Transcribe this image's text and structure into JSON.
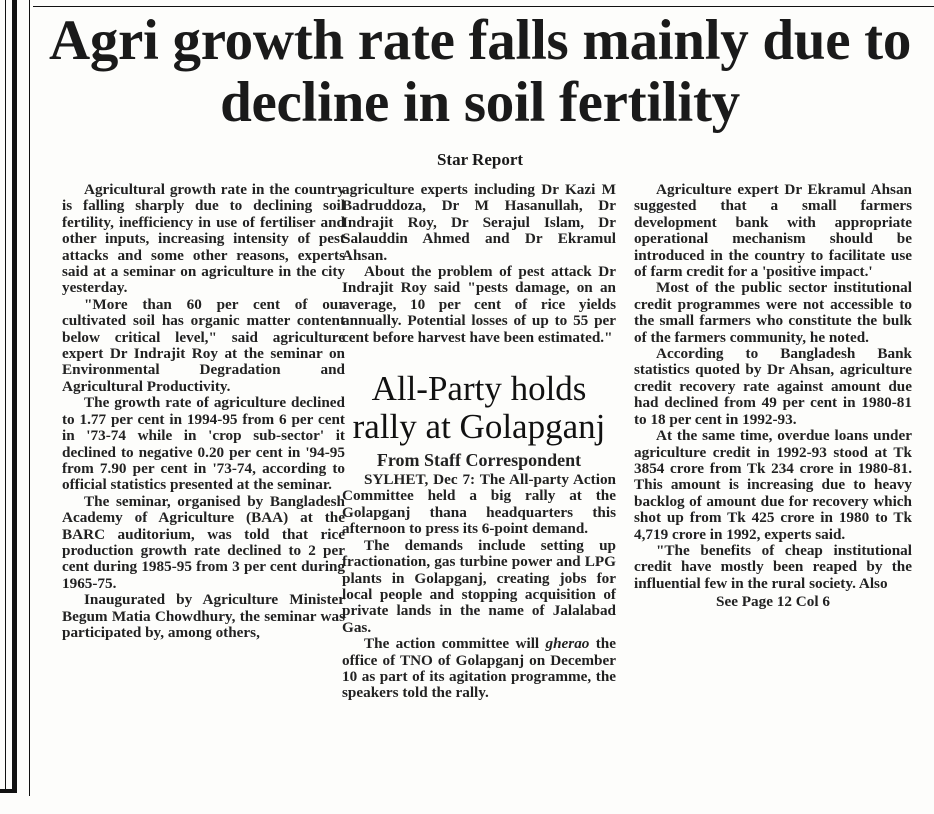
{
  "main_story": {
    "headline": "Agri growth rate falls mainly due to decline in soil fertility",
    "byline": "Star Report",
    "column1": [
      "Agricultural growth rate in the country is falling sharply due to declining soil fertility, inefficiency in use of fertiliser and other inputs, increasing intensity of pest attacks and some other reasons, experts said at a seminar on agriculture in the city yesterday.",
      "\"More than 60 per cent of our cultivated soil has organic matter content below critical level,\" said agriculture expert Dr Indrajit Roy at the seminar on Environmental Degradation and Agricultural Productivity.",
      "The growth rate of agriculture declined to 1.77 per cent in 1994-95 from 6 per cent in '73-74 while in 'crop sub-sector' it declined to negative 0.20 per cent in '94-95 from 7.90 per cent in '73-74, according to official statistics presented at the seminar.",
      "The seminar, organised by Bangladesh Academy of Agriculture (BAA) at the BARC auditorium, was told that rice production growth rate declined to 2 per cent during 1985-95 from 3 per cent during 1965-75.",
      "Inaugurated by Agriculture Minister Begum Matia Chowdhury, the seminar was participated by, among others,"
    ],
    "column2": [
      "agriculture experts including Dr Kazi M Badruddoza, Dr M Hasanullah, Dr Indrajit Roy, Dr Serajul Islam, Dr Salauddin Ahmed and Dr Ekramul Ahsan.",
      "About the problem of pest attack Dr Indrajit Roy said \"pests damage, on an average, 10 per cent of rice yields annually. Potential losses of up to 55 per cent before harvest have been estimated.\""
    ],
    "column3": [
      "Agriculture expert Dr Ekramul Ahsan suggested that a small farmers development bank with appropriate operational mechanism should be introduced in the country to facilitate use of farm credit for a 'positive impact.'",
      "Most of the public sector institutional credit programmes were not accessible to the small farmers who constitute the bulk of the farmers community, he noted.",
      "According to Bangladesh Bank statistics quoted by Dr Ahsan, agriculture credit recovery rate against amount due had declined from 49 per cent in 1980-81 to 18 per cent in 1992-93.",
      "At the same time, overdue loans under agriculture credit in 1992-93 stood at Tk 3854 crore from Tk 234 crore in 1980-81. This amount is increasing due to heavy backlog of amount due for recovery which shot up from Tk 425 crore in 1980 to Tk 4,719 crore in 1992, experts said.",
      "\"The benefits of cheap institutional credit have mostly been reaped by the influential few in the rural society. Also"
    ],
    "jump": "See Page 12 Col 6"
  },
  "second_story": {
    "headline": "All-Party holds rally at Golapganj",
    "byline": "From Staff Correspondent",
    "paragraphs": [
      "SYLHET, Dec 7: The All-party Action Committee held a big rally at the Golapganj thana headquarters this afternoon to press its 6-point demand.",
      "The demands include setting up fractionation, gas turbine power and LPG plants in Golapganj, creating jobs for local people and stopping acquisition of private lands in the name of Jalalabad Gas."
    ],
    "last_paragraph_italic": "gherao",
    "last_paragraph_before": "The action committee will ",
    "last_paragraph_after": " the office of TNO of Golapganj on December 10 as part of its agitation programme, the speakers told the rally."
  }
}
